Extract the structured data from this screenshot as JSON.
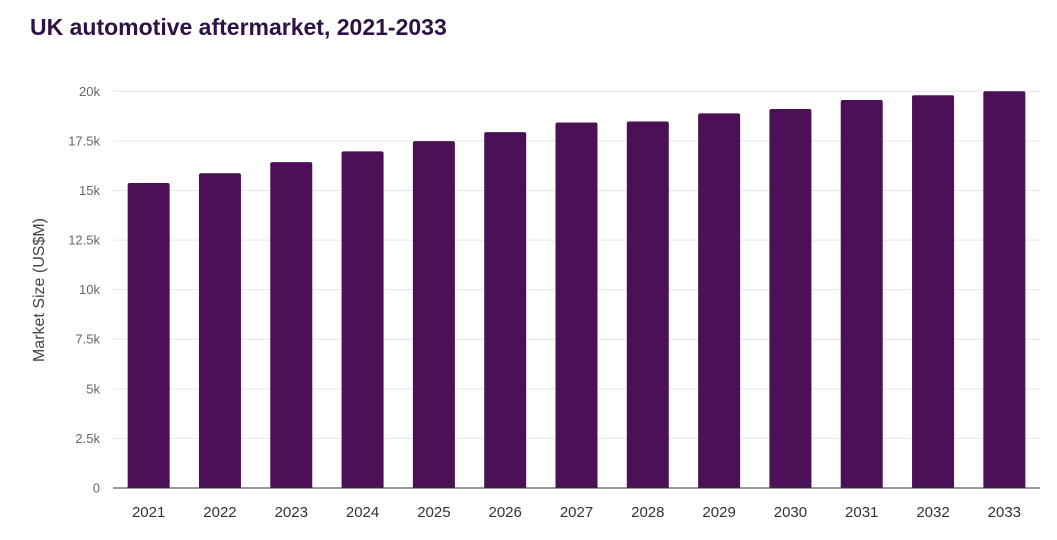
{
  "chart_data": {
    "type": "bar",
    "title": "UK automotive aftermarket, 2021-2033",
    "xlabel": "",
    "ylabel": "Market Size (US$M)",
    "categories": [
      "2021",
      "2022",
      "2023",
      "2024",
      "2025",
      "2026",
      "2027",
      "2028",
      "2029",
      "2030",
      "2031",
      "2032",
      "2033"
    ],
    "values": [
      15380,
      15870,
      16430,
      16970,
      17490,
      17940,
      18430,
      18480,
      18890,
      19110,
      19560,
      19800,
      20000
    ],
    "ylim": [
      0,
      20000
    ],
    "yticks": [
      0,
      2500,
      5000,
      7500,
      10000,
      12500,
      15000,
      17500,
      20000
    ],
    "ytick_labels": [
      "0",
      "2.5k",
      "5k",
      "7.5k",
      "10k",
      "12.5k",
      "15k",
      "17.5k",
      "20k"
    ],
    "grid": true,
    "legend": "none",
    "bar_color": "#4b1056"
  }
}
